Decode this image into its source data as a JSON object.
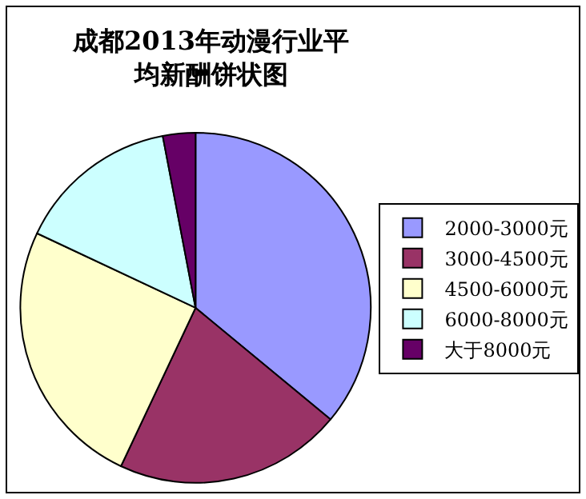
{
  "chart_data": {
    "type": "pie",
    "title": "成都2013年动漫行业平均新酬饼状图",
    "categories": [
      "2000-3000元",
      "3000-4500元",
      "4500-6000元",
      "6000-8000元",
      "大于8000元"
    ],
    "values": [
      36,
      21,
      25,
      15,
      3
    ],
    "colors": [
      "#9999ff",
      "#993366",
      "#ffffcc",
      "#ccffff",
      "#660066"
    ],
    "legend": "right"
  }
}
